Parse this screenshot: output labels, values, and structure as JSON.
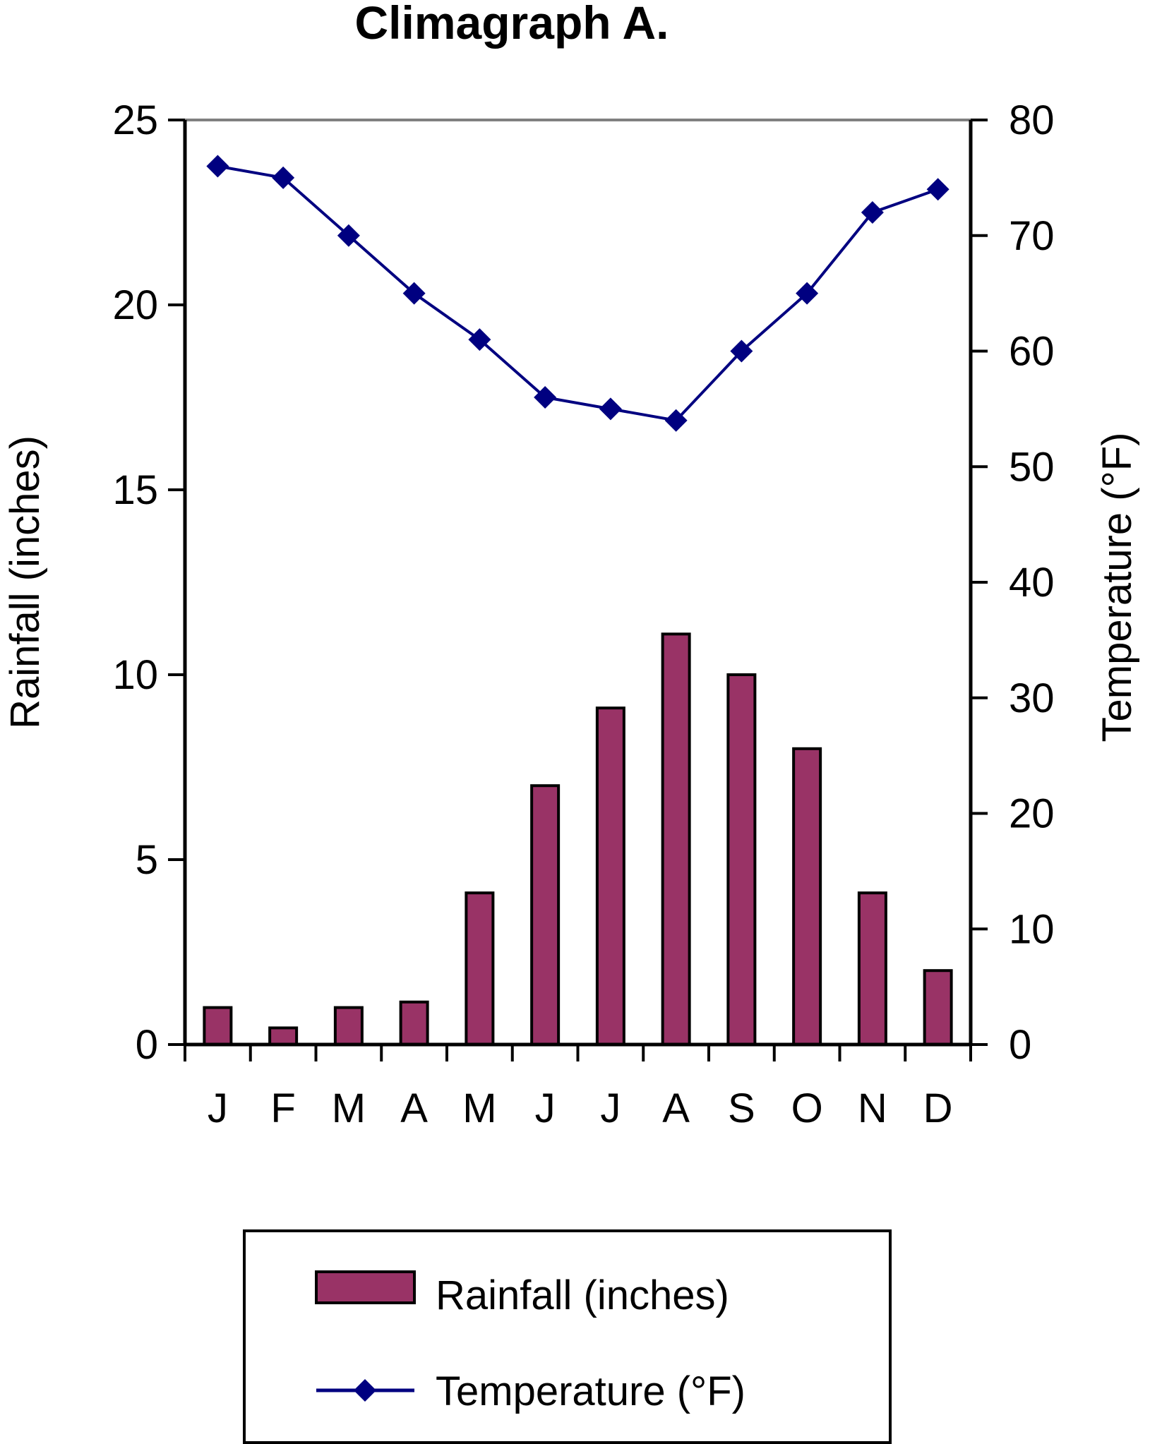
{
  "chart_data": {
    "type": "bar",
    "title": "Climagraph A.",
    "categories": [
      "J",
      "F",
      "M",
      "A",
      "M",
      "J",
      "J",
      "A",
      "S",
      "O",
      "N",
      "D"
    ],
    "series": [
      {
        "name": "Rainfall (inches)",
        "type": "bar",
        "axis": "left",
        "color": "#993366",
        "values": [
          1.0,
          0.45,
          1.0,
          1.15,
          4.1,
          7.0,
          9.1,
          11.1,
          10.0,
          8.0,
          4.1,
          2.0
        ]
      },
      {
        "name": "Temperature (°F)",
        "type": "line",
        "axis": "right",
        "color": "#000080",
        "marker": "diamond",
        "values": [
          76,
          75,
          70,
          65,
          61,
          56,
          55,
          54,
          60,
          65,
          72,
          74
        ]
      }
    ],
    "ylabel": "Rainfall (inches)",
    "ylim": [
      0,
      25
    ],
    "yticks": [
      0,
      5,
      10,
      15,
      20,
      25
    ],
    "y2label": "Temperature (°F)",
    "y2lim": [
      0,
      80
    ],
    "y2ticks": [
      0,
      10,
      20,
      30,
      40,
      50,
      60,
      70,
      80
    ],
    "grid": false,
    "legend": "bottom"
  }
}
